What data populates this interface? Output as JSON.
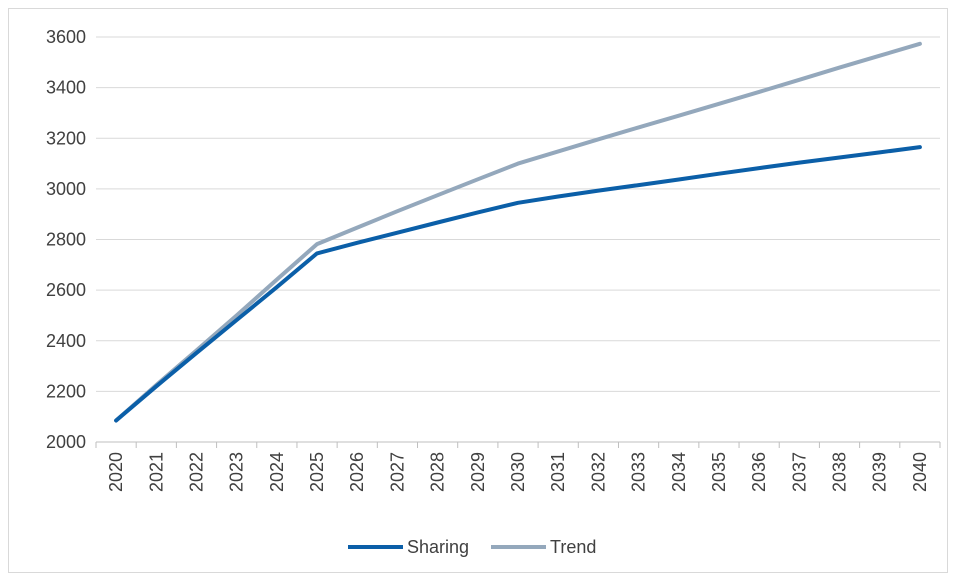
{
  "chart_data": {
    "type": "line",
    "title": "",
    "xlabel": "",
    "ylabel": "",
    "x": [
      "2020",
      "2021",
      "2022",
      "2023",
      "2024",
      "2025",
      "2026",
      "2027",
      "2028",
      "2029",
      "2030",
      "2031",
      "2032",
      "2033",
      "2034",
      "2035",
      "2036",
      "2037",
      "2038",
      "2039",
      "2040"
    ],
    "ylim": [
      2000,
      3600
    ],
    "yticks": [
      2000,
      2200,
      2400,
      2600,
      2800,
      3000,
      3200,
      3400,
      3600
    ],
    "grid": "horizontal",
    "legend": "bottom",
    "series": [
      {
        "name": "Sharing",
        "color": "#0b5fa8",
        "values": [
          2085,
          2220,
          2352,
          2482,
          2612,
          2745,
          2787,
          2827,
          2867,
          2907,
          2945,
          2970,
          2993,
          3015,
          3037,
          3060,
          3082,
          3104,
          3124,
          3144,
          3165
        ]
      },
      {
        "name": "Trend",
        "color": "#94a8bc",
        "values": [
          2085,
          2225,
          2362,
          2500,
          2642,
          2782,
          2847,
          2912,
          2975,
          3038,
          3100,
          3148,
          3196,
          3243,
          3289,
          3336,
          3383,
          3431,
          3479,
          3526,
          3573
        ]
      }
    ]
  }
}
